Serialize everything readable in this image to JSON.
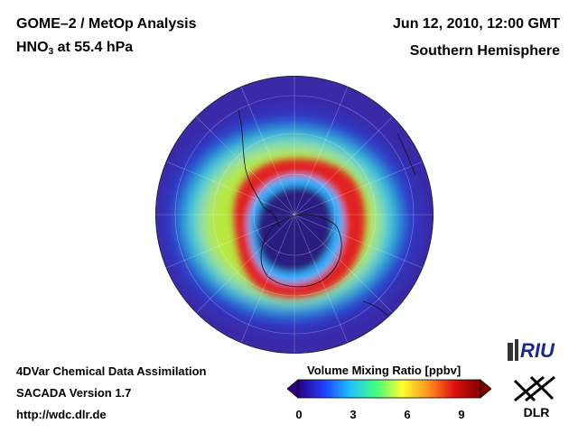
{
  "header": {
    "title": "GOME–2 / MetOp Analysis",
    "species": "HNO",
    "species_sub": "3",
    "level": " at 55.4 hPa",
    "date": "Jun 12, 2010, 12:00 GMT",
    "hemisphere": "Southern Hemisphere"
  },
  "footer": {
    "line1": "4DVar Chemical Data Assimilation",
    "line2": "SACADA Version 1.7",
    "line3": "http://wdc.dlr.de"
  },
  "colorbar": {
    "title": "Volume Mixing Ratio [ppbv]",
    "ticks": [
      "0",
      "3",
      "6",
      "9"
    ],
    "range": [
      0,
      10
    ],
    "colors": [
      "#2a0080",
      "#2040ff",
      "#20c0ff",
      "#40ff80",
      "#ffff30",
      "#ff9020",
      "#e01010",
      "#800000"
    ]
  },
  "logos": {
    "riu": "RIU",
    "dlr": "DLR"
  },
  "map": {
    "background_color": "#3a2aa8",
    "outer_ring_color": "#2a3ad0",
    "mid_ring_color": "#30d0e0",
    "band_color": "#b8e840",
    "core_ring_color": "#e02020",
    "vortex_edge_color": "#30b0ff",
    "vortex_core_color": "#2a1a80"
  }
}
